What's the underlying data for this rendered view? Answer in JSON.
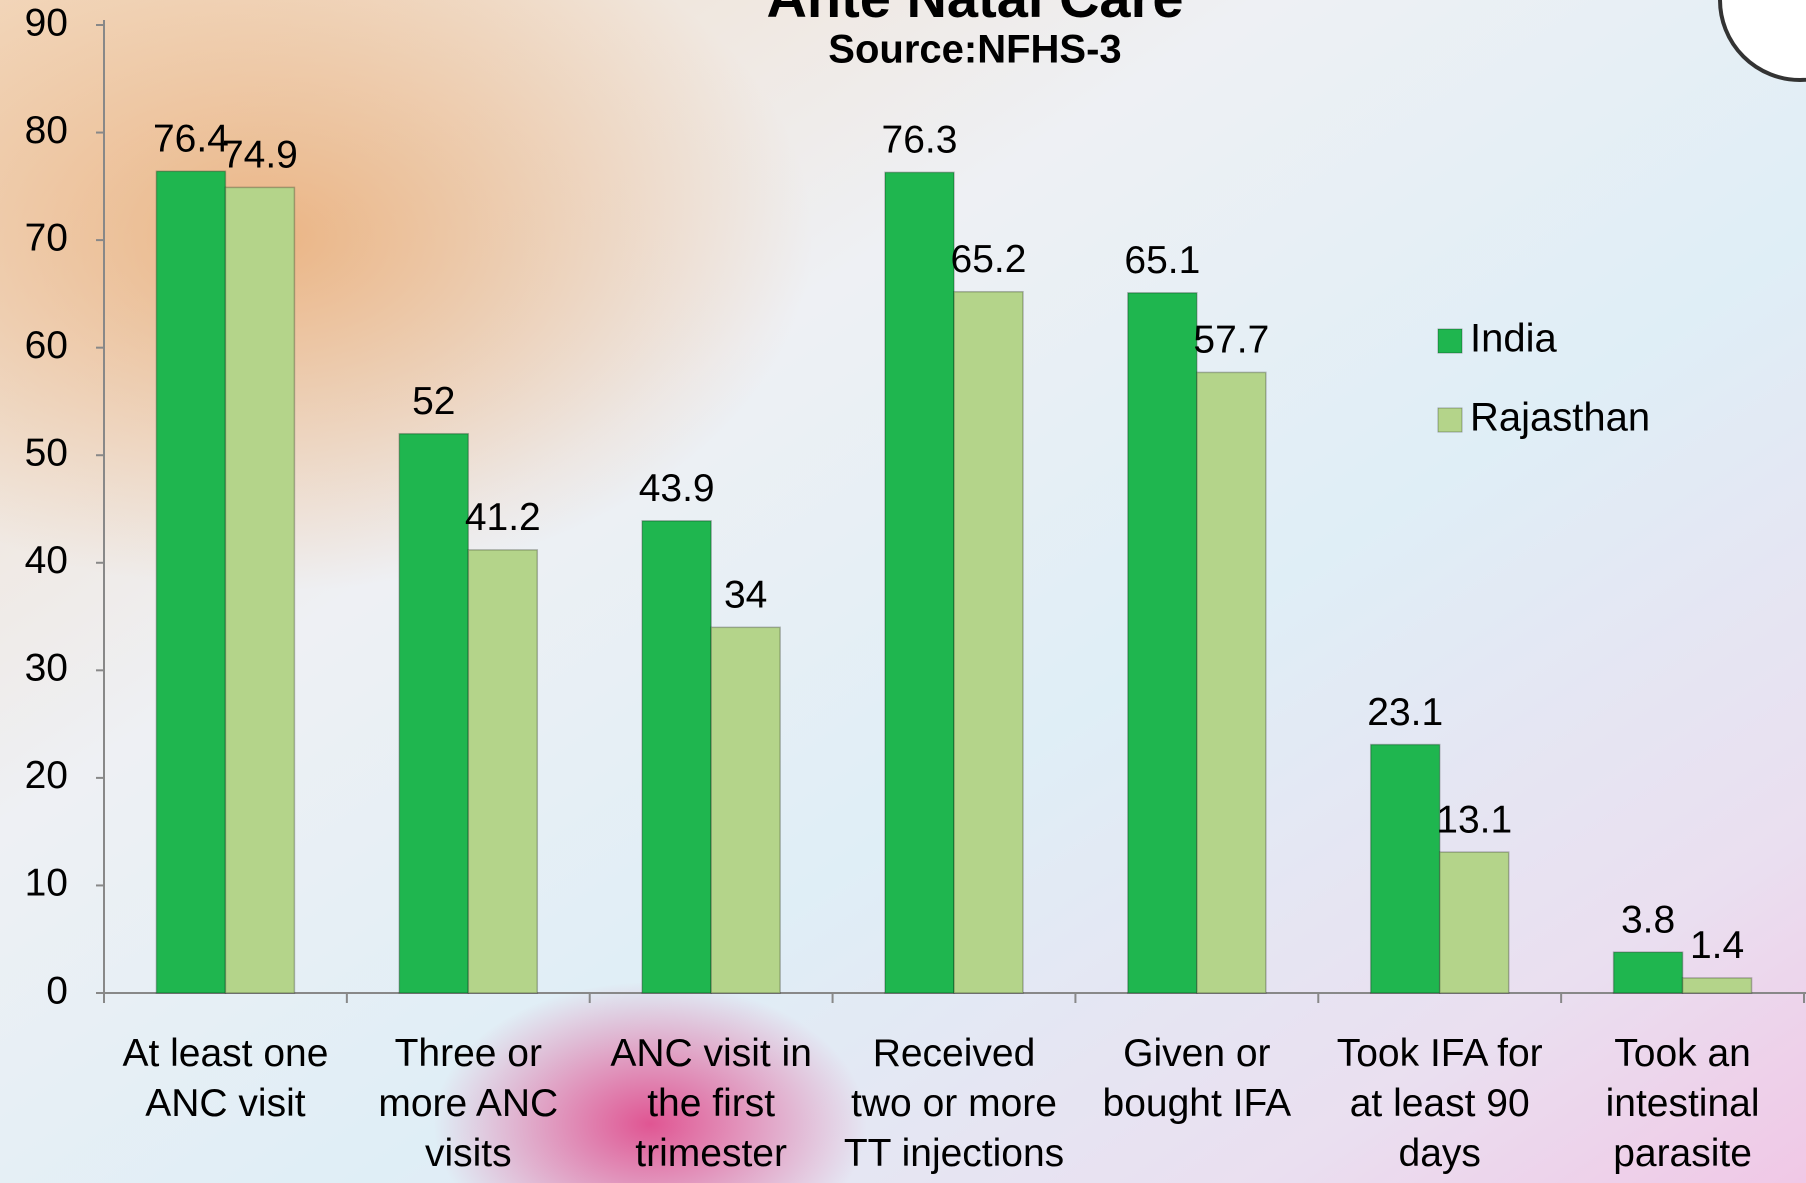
{
  "chart_data": {
    "type": "bar",
    "title": "Ante Natal Care",
    "subtitle": "Source:NFHS-3",
    "categories": [
      [
        "At least one",
        "ANC visit"
      ],
      [
        "Three or",
        "more ANC",
        "visits"
      ],
      [
        "ANC visit in",
        "the first",
        "trimester"
      ],
      [
        "Received",
        "two or more",
        "TT injections"
      ],
      [
        "Given or",
        "bought IFA"
      ],
      [
        "Took IFA for",
        "at least 90",
        "days"
      ],
      [
        "Took an",
        "intestinal",
        "parasite"
      ]
    ],
    "series": [
      {
        "name": "India",
        "color": "#1fb64f",
        "values": [
          76.4,
          52,
          43.9,
          76.3,
          65.1,
          23.1,
          3.8
        ]
      },
      {
        "name": "Rajasthan",
        "color": "#b4d48a",
        "values": [
          74.9,
          41.2,
          34,
          65.2,
          57.7,
          13.1,
          1.4
        ]
      }
    ],
    "ylim": [
      0,
      90
    ],
    "yticks": [
      0,
      10,
      20,
      30,
      40,
      50,
      60,
      70,
      80,
      90
    ],
    "grid": false
  }
}
